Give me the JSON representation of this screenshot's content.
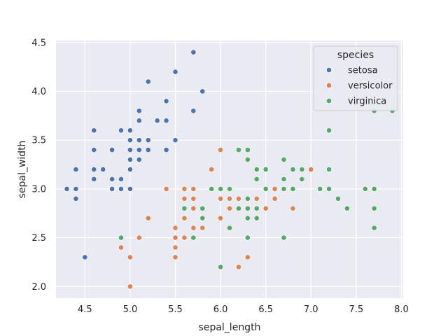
{
  "chart_data": {
    "type": "scatter",
    "title": "",
    "xlabel": "sepal_length",
    "ylabel": "sepal_width",
    "xlim": [
      4.18,
      8.02
    ],
    "ylim": [
      1.88,
      4.52
    ],
    "xticks": [
      "4.5",
      "5.0",
      "5.5",
      "6.0",
      "6.5",
      "7.0",
      "7.5",
      "8.0"
    ],
    "yticks": [
      "2.0",
      "2.5",
      "3.0",
      "3.5",
      "4.0",
      "4.5"
    ],
    "grid": true,
    "legend": {
      "title": "species",
      "placement": "top-right"
    },
    "series": [
      {
        "name": "setosa",
        "color": "#4c72b0",
        "points": [
          [
            4.3,
            3.0
          ],
          [
            4.4,
            2.9
          ],
          [
            4.4,
            3.0
          ],
          [
            4.4,
            3.2
          ],
          [
            4.5,
            2.3
          ],
          [
            4.6,
            3.1
          ],
          [
            4.6,
            3.2
          ],
          [
            4.6,
            3.4
          ],
          [
            4.6,
            3.6
          ],
          [
            4.7,
            3.2
          ],
          [
            4.8,
            3.0
          ],
          [
            4.8,
            3.1
          ],
          [
            4.8,
            3.4
          ],
          [
            4.9,
            3.0
          ],
          [
            4.9,
            3.1
          ],
          [
            4.9,
            3.6
          ],
          [
            5.0,
            3.0
          ],
          [
            5.0,
            3.2
          ],
          [
            5.0,
            3.3
          ],
          [
            5.0,
            3.4
          ],
          [
            5.0,
            3.5
          ],
          [
            5.0,
            3.6
          ],
          [
            5.1,
            3.3
          ],
          [
            5.1,
            3.4
          ],
          [
            5.1,
            3.5
          ],
          [
            5.1,
            3.7
          ],
          [
            5.1,
            3.8
          ],
          [
            5.2,
            3.4
          ],
          [
            5.2,
            3.5
          ],
          [
            5.2,
            4.1
          ],
          [
            5.3,
            3.7
          ],
          [
            5.4,
            3.4
          ],
          [
            5.4,
            3.7
          ],
          [
            5.4,
            3.9
          ],
          [
            5.5,
            3.5
          ],
          [
            5.5,
            4.2
          ],
          [
            5.7,
            3.8
          ],
          [
            5.7,
            4.4
          ],
          [
            5.8,
            4.0
          ]
        ]
      },
      {
        "name": "versicolor",
        "color": "#dd8452",
        "points": [
          [
            4.9,
            2.4
          ],
          [
            5.0,
            2.0
          ],
          [
            5.0,
            2.3
          ],
          [
            5.1,
            2.5
          ],
          [
            5.2,
            2.7
          ],
          [
            5.4,
            3.0
          ],
          [
            5.5,
            2.3
          ],
          [
            5.5,
            2.4
          ],
          [
            5.5,
            2.5
          ],
          [
            5.5,
            2.6
          ],
          [
            5.6,
            2.5
          ],
          [
            5.6,
            2.7
          ],
          [
            5.6,
            2.9
          ],
          [
            5.6,
            3.0
          ],
          [
            5.7,
            2.6
          ],
          [
            5.7,
            2.8
          ],
          [
            5.7,
            2.9
          ],
          [
            5.7,
            3.0
          ],
          [
            5.8,
            2.6
          ],
          [
            5.8,
            2.7
          ],
          [
            5.9,
            3.0
          ],
          [
            5.9,
            3.2
          ],
          [
            6.0,
            2.2
          ],
          [
            6.0,
            2.7
          ],
          [
            6.0,
            2.9
          ],
          [
            6.0,
            3.4
          ],
          [
            6.1,
            2.8
          ],
          [
            6.1,
            2.9
          ],
          [
            6.1,
            3.0
          ],
          [
            6.2,
            2.2
          ],
          [
            6.2,
            2.9
          ],
          [
            6.3,
            2.3
          ],
          [
            6.3,
            2.5
          ],
          [
            6.3,
            3.3
          ],
          [
            6.4,
            2.9
          ],
          [
            6.4,
            3.2
          ],
          [
            6.5,
            2.8
          ],
          [
            6.6,
            2.9
          ],
          [
            6.6,
            3.0
          ],
          [
            6.7,
            3.0
          ],
          [
            6.7,
            3.1
          ],
          [
            6.8,
            2.8
          ],
          [
            6.9,
            3.1
          ],
          [
            7.0,
            3.2
          ]
        ]
      },
      {
        "name": "virginica",
        "color": "#55a868",
        "points": [
          [
            4.9,
            2.5
          ],
          [
            5.6,
            2.8
          ],
          [
            5.7,
            2.5
          ],
          [
            5.8,
            2.7
          ],
          [
            5.8,
            2.8
          ],
          [
            5.9,
            3.0
          ],
          [
            6.0,
            2.2
          ],
          [
            6.0,
            3.0
          ],
          [
            6.1,
            2.6
          ],
          [
            6.1,
            3.0
          ],
          [
            6.2,
            2.8
          ],
          [
            6.2,
            3.4
          ],
          [
            6.3,
            2.5
          ],
          [
            6.3,
            2.7
          ],
          [
            6.3,
            2.8
          ],
          [
            6.3,
            2.9
          ],
          [
            6.3,
            3.3
          ],
          [
            6.3,
            3.4
          ],
          [
            6.4,
            2.7
          ],
          [
            6.4,
            2.8
          ],
          [
            6.4,
            3.1
          ],
          [
            6.4,
            3.2
          ],
          [
            6.5,
            3.0
          ],
          [
            6.5,
            3.2
          ],
          [
            6.7,
            2.5
          ],
          [
            6.7,
            3.0
          ],
          [
            6.7,
            3.1
          ],
          [
            6.7,
            3.3
          ],
          [
            6.8,
            3.0
          ],
          [
            6.8,
            3.2
          ],
          [
            6.9,
            3.1
          ],
          [
            6.9,
            3.2
          ],
          [
            7.1,
            3.0
          ],
          [
            7.2,
            3.0
          ],
          [
            7.2,
            3.2
          ],
          [
            7.2,
            3.6
          ],
          [
            7.3,
            2.9
          ],
          [
            7.4,
            2.8
          ],
          [
            7.6,
            3.0
          ],
          [
            7.7,
            2.6
          ],
          [
            7.7,
            2.8
          ],
          [
            7.7,
            3.0
          ],
          [
            7.7,
            3.8
          ],
          [
            7.9,
            3.8
          ]
        ]
      }
    ]
  }
}
